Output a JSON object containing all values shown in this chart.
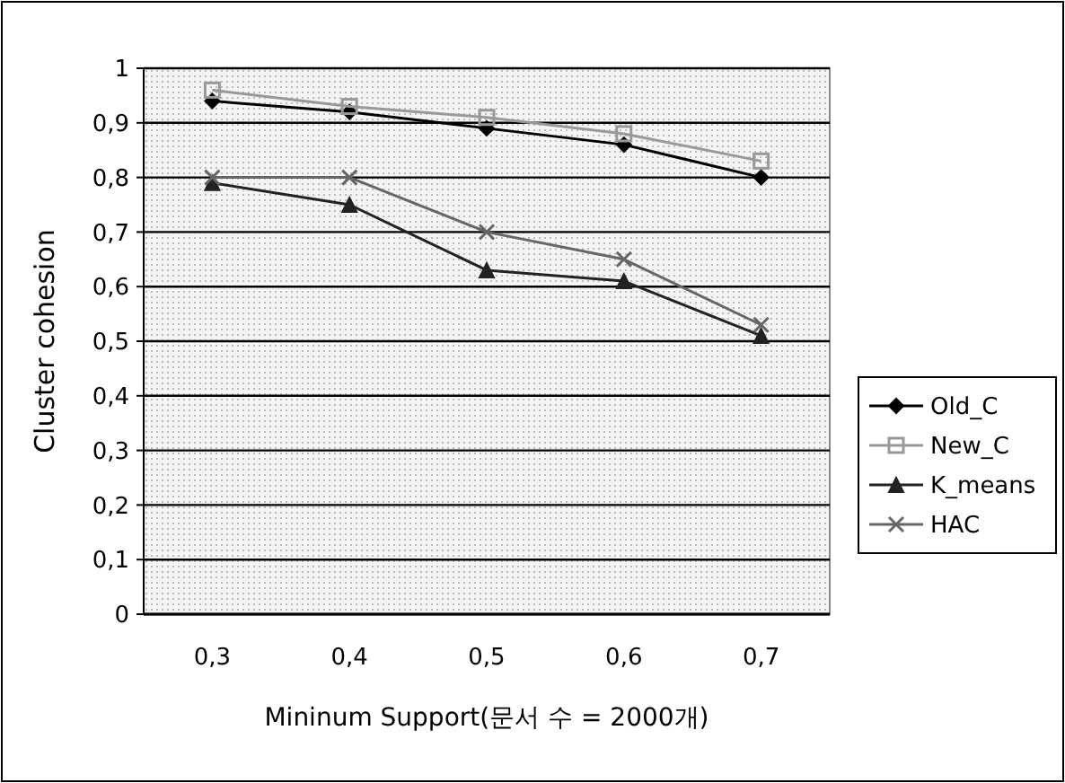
{
  "chart_data": {
    "type": "line",
    "ylabel": "Cluster cohesion",
    "xlabel": "Mininum Support(문서 수 = 2000개)",
    "categories": [
      "0,3",
      "0,4",
      "0,5",
      "0,6",
      "0,7"
    ],
    "series": [
      {
        "name": "Old_C",
        "color": "#000000",
        "marker": "diamond",
        "values": [
          0.94,
          0.92,
          0.89,
          0.86,
          0.8
        ]
      },
      {
        "name": "New_C",
        "color": "#999999",
        "marker": "square",
        "values": [
          0.96,
          0.93,
          0.91,
          0.88,
          0.83
        ]
      },
      {
        "name": "K_means",
        "color": "#222222",
        "marker": "triangle",
        "values": [
          0.79,
          0.75,
          0.63,
          0.61,
          0.51
        ]
      },
      {
        "name": "HAC",
        "color": "#666666",
        "marker": "cross",
        "values": [
          0.8,
          0.8,
          0.7,
          0.65,
          0.53
        ]
      }
    ],
    "ylim": [
      0,
      1
    ],
    "yticks": [
      0,
      {
        "value": 0.1,
        "label": "0,1"
      },
      {
        "value": 0.2,
        "label": "0,2"
      },
      {
        "value": 0.3,
        "label": "0,3"
      },
      {
        "value": 0.4,
        "label": "0,4"
      },
      {
        "value": 0.5,
        "label": "0,5"
      },
      {
        "value": 0.6,
        "label": "0,6"
      },
      {
        "value": 0.7,
        "label": "0,7"
      },
      {
        "value": 0.8,
        "label": "0,8"
      },
      {
        "value": 0.9,
        "label": "0,9"
      },
      1
    ],
    "grid": "y",
    "legend": "right",
    "line_style": "solid"
  }
}
